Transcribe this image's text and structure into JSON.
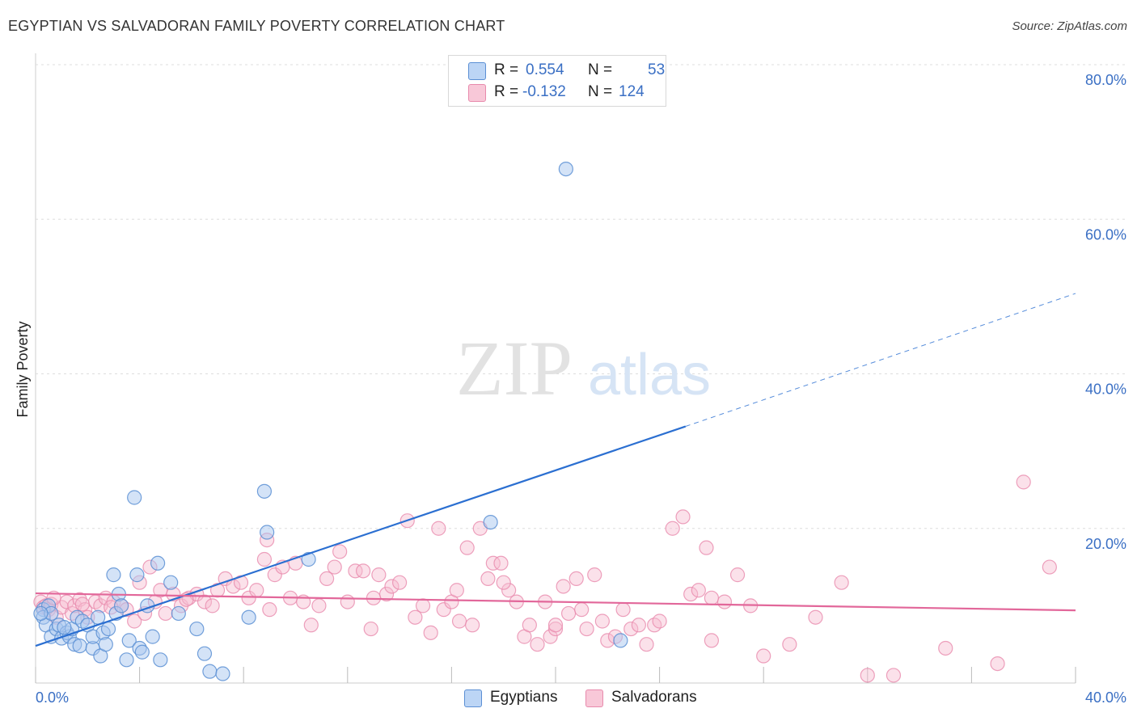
{
  "header": {
    "title": "EGYPTIAN VS SALVADORAN FAMILY POVERTY CORRELATION CHART",
    "source": "Source: ZipAtlas.com"
  },
  "watermark": {
    "zip": "ZIP",
    "atlas": "atlas"
  },
  "legend": {
    "r_label": "R =",
    "n_label": "N =",
    "egyptians": {
      "r": "0.554",
      "n": "53"
    },
    "salvadorans": {
      "r": "-0.132",
      "n": "124"
    }
  },
  "bottom_legend": {
    "egyptians": "Egyptians",
    "salvadorans": "Salvadorans"
  },
  "colors": {
    "egyptians_fill": "#a9c8f0",
    "egyptians_stroke": "#5b8fd4",
    "egyptians_line": "#2b6fd1",
    "salvadorans_fill": "#f6bcd0",
    "salvadorans_stroke": "#e88aac",
    "salvadorans_line": "#e2679a",
    "grid": "#dddddd",
    "axis_text": "#3a6fc4"
  },
  "chart_data": {
    "type": "scatter",
    "title": "EGYPTIAN VS SALVADORAN FAMILY POVERTY CORRELATION CHART",
    "xlabel": "",
    "ylabel": "Family Poverty",
    "xlim": [
      0,
      40
    ],
    "ylim": [
      0,
      80
    ],
    "x_tick_labels": [
      "0.0%",
      "40.0%"
    ],
    "y_ticks": [
      20,
      40,
      60,
      80
    ],
    "y_tick_labels": [
      "20.0%",
      "40.0%",
      "60.0%",
      "80.0%"
    ],
    "series": [
      {
        "name": "Egyptians",
        "r": 0.554,
        "n": 53,
        "trend": {
          "x0": 0,
          "y0": 4.8,
          "x1": 25,
          "y1": 33.2,
          "dashed_to_x": 40,
          "dashed_to_y": 50.4
        },
        "points": [
          [
            0.3,
            9.5
          ],
          [
            0.3,
            8.5
          ],
          [
            0.4,
            7.5
          ],
          [
            0.5,
            10.0
          ],
          [
            0.6,
            9.0
          ],
          [
            0.6,
            6.0
          ],
          [
            0.8,
            7.0
          ],
          [
            0.9,
            7.5
          ],
          [
            1.0,
            5.8
          ],
          [
            1.2,
            6.5
          ],
          [
            1.3,
            6.0
          ],
          [
            1.4,
            7.0
          ],
          [
            1.5,
            5.0
          ],
          [
            1.6,
            8.5
          ],
          [
            1.7,
            4.8
          ],
          [
            1.8,
            8.0
          ],
          [
            2.0,
            7.5
          ],
          [
            2.2,
            4.5
          ],
          [
            2.2,
            6.0
          ],
          [
            2.4,
            8.5
          ],
          [
            2.5,
            3.5
          ],
          [
            2.6,
            6.5
          ],
          [
            2.7,
            5.0
          ],
          [
            2.8,
            7.0
          ],
          [
            3.0,
            14.0
          ],
          [
            3.1,
            9.0
          ],
          [
            3.2,
            11.5
          ],
          [
            3.3,
            10.0
          ],
          [
            3.5,
            3.0
          ],
          [
            3.6,
            5.5
          ],
          [
            3.8,
            24.0
          ],
          [
            3.9,
            14.0
          ],
          [
            4.0,
            4.5
          ],
          [
            4.1,
            4.0
          ],
          [
            4.3,
            10.0
          ],
          [
            4.5,
            6.0
          ],
          [
            4.7,
            15.5
          ],
          [
            4.8,
            3.0
          ],
          [
            5.2,
            13.0
          ],
          [
            5.5,
            9.0
          ],
          [
            6.2,
            7.0
          ],
          [
            6.5,
            3.8
          ],
          [
            6.7,
            1.5
          ],
          [
            7.2,
            1.2
          ],
          [
            8.2,
            8.5
          ],
          [
            8.8,
            24.8
          ],
          [
            8.9,
            19.5
          ],
          [
            10.5,
            16.0
          ],
          [
            17.5,
            20.8
          ],
          [
            20.4,
            66.5
          ],
          [
            22.5,
            5.5
          ],
          [
            0.2,
            9.0
          ],
          [
            1.1,
            7.2
          ]
        ]
      },
      {
        "name": "Salvadorans",
        "r": -0.132,
        "n": 124,
        "trend": {
          "x0": 0,
          "y0": 11.6,
          "x1": 40,
          "y1": 9.4
        },
        "points": [
          [
            0.2,
            10.5
          ],
          [
            0.3,
            9.8
          ],
          [
            0.4,
            10.0
          ],
          [
            0.5,
            9.5
          ],
          [
            0.6,
            10.2
          ],
          [
            0.8,
            8.5
          ],
          [
            1.0,
            9.8
          ],
          [
            1.2,
            10.5
          ],
          [
            1.4,
            9.0
          ],
          [
            1.5,
            10.0
          ],
          [
            1.7,
            10.8
          ],
          [
            1.9,
            9.5
          ],
          [
            2.0,
            8.5
          ],
          [
            2.3,
            10.5
          ],
          [
            2.5,
            10.0
          ],
          [
            2.7,
            11.0
          ],
          [
            3.0,
            10.5
          ],
          [
            3.3,
            10.0
          ],
          [
            3.5,
            9.5
          ],
          [
            3.8,
            8.0
          ],
          [
            4.0,
            13.0
          ],
          [
            4.2,
            9.0
          ],
          [
            4.4,
            15.0
          ],
          [
            4.6,
            10.5
          ],
          [
            4.8,
            12.0
          ],
          [
            5.0,
            9.0
          ],
          [
            5.3,
            11.5
          ],
          [
            5.6,
            10.0
          ],
          [
            5.9,
            11.0
          ],
          [
            6.2,
            11.5
          ],
          [
            6.5,
            10.5
          ],
          [
            6.8,
            10.0
          ],
          [
            7.0,
            12.0
          ],
          [
            7.3,
            13.5
          ],
          [
            7.6,
            12.5
          ],
          [
            7.9,
            13.0
          ],
          [
            8.2,
            11.0
          ],
          [
            8.5,
            12.0
          ],
          [
            8.8,
            16.0
          ],
          [
            8.9,
            18.5
          ],
          [
            9.2,
            14.0
          ],
          [
            9.5,
            15.0
          ],
          [
            9.8,
            11.0
          ],
          [
            10.0,
            15.5
          ],
          [
            10.3,
            10.5
          ],
          [
            10.6,
            7.5
          ],
          [
            10.9,
            10.0
          ],
          [
            11.2,
            13.5
          ],
          [
            11.5,
            15.0
          ],
          [
            11.7,
            17.0
          ],
          [
            12.0,
            10.5
          ],
          [
            12.3,
            14.5
          ],
          [
            12.6,
            14.5
          ],
          [
            12.9,
            7.0
          ],
          [
            13.2,
            14.0
          ],
          [
            13.5,
            11.5
          ],
          [
            13.7,
            12.5
          ],
          [
            14.0,
            13.0
          ],
          [
            14.3,
            21.0
          ],
          [
            14.6,
            8.5
          ],
          [
            14.9,
            10.0
          ],
          [
            15.2,
            6.5
          ],
          [
            15.5,
            20.0
          ],
          [
            15.7,
            9.5
          ],
          [
            16.0,
            10.5
          ],
          [
            16.3,
            8.0
          ],
          [
            16.6,
            17.5
          ],
          [
            16.8,
            7.5
          ],
          [
            17.1,
            20.0
          ],
          [
            17.4,
            13.5
          ],
          [
            17.6,
            15.5
          ],
          [
            17.9,
            15.5
          ],
          [
            18.2,
            12.0
          ],
          [
            18.5,
            10.5
          ],
          [
            18.8,
            6.0
          ],
          [
            19.0,
            7.5
          ],
          [
            19.3,
            5.0
          ],
          [
            19.6,
            10.5
          ],
          [
            19.8,
            6.0
          ],
          [
            20.0,
            7.0
          ],
          [
            20.3,
            12.5
          ],
          [
            20.5,
            9.0
          ],
          [
            20.8,
            13.5
          ],
          [
            21.0,
            9.5
          ],
          [
            21.2,
            7.0
          ],
          [
            21.5,
            14.0
          ],
          [
            21.8,
            8.0
          ],
          [
            22.0,
            5.5
          ],
          [
            22.3,
            6.0
          ],
          [
            22.6,
            9.5
          ],
          [
            22.9,
            7.0
          ],
          [
            23.2,
            7.5
          ],
          [
            23.5,
            5.0
          ],
          [
            23.8,
            7.5
          ],
          [
            24.5,
            20.0
          ],
          [
            24.9,
            21.5
          ],
          [
            25.2,
            11.5
          ],
          [
            25.5,
            12.0
          ],
          [
            25.8,
            17.5
          ],
          [
            26.0,
            5.5
          ],
          [
            26.5,
            10.5
          ],
          [
            27.0,
            14.0
          ],
          [
            27.5,
            10.0
          ],
          [
            28.0,
            3.5
          ],
          [
            29.0,
            5.0
          ],
          [
            30.0,
            8.5
          ],
          [
            31.0,
            13.0
          ],
          [
            32.0,
            1.0
          ],
          [
            33.0,
            1.0
          ],
          [
            35.0,
            4.5
          ],
          [
            37.0,
            2.5
          ],
          [
            38.0,
            26.0
          ],
          [
            39.0,
            15.0
          ],
          [
            0.7,
            11.0
          ],
          [
            1.8,
            10.2
          ],
          [
            2.9,
            9.8
          ],
          [
            5.8,
            10.8
          ],
          [
            9.0,
            9.5
          ],
          [
            13.0,
            11.0
          ],
          [
            16.2,
            12.0
          ],
          [
            18.0,
            13.0
          ],
          [
            20.0,
            7.5
          ],
          [
            24.0,
            8.0
          ],
          [
            26.0,
            11.0
          ]
        ]
      }
    ]
  }
}
